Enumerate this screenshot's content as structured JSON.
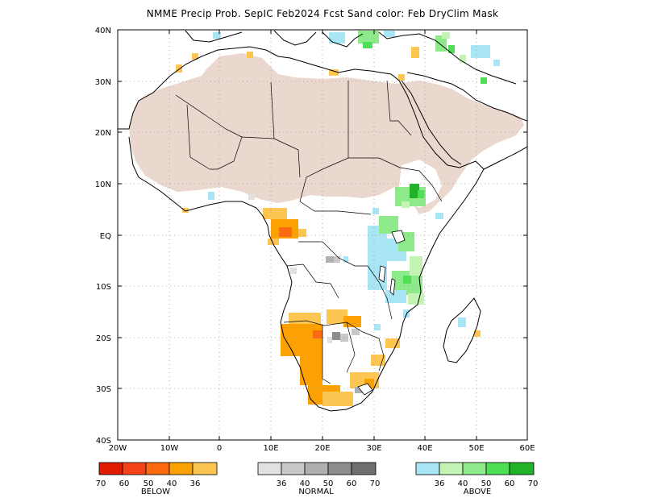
{
  "title": "NMME Precip Prob. SepIC  Feb2024 Fcst  Sand color: Feb DryClim Mask",
  "axes": {
    "lat_labels": [
      "40N",
      "30N",
      "20N",
      "10N",
      "EQ",
      "10S",
      "20S",
      "30S",
      "40S"
    ],
    "lon_labels": [
      "20W",
      "10W",
      "0",
      "10E",
      "20E",
      "30E",
      "40E",
      "50E",
      "60E"
    ]
  },
  "colors": {
    "land_outline": "#000000",
    "dry_mask": "#ead8cf",
    "grid": "#9a9a9a"
  },
  "legend": {
    "below": {
      "label": "BELOW",
      "colors": [
        "#e01c00",
        "#f54218",
        "#fb6a10",
        "#fca102",
        "#fdc653"
      ],
      "tick_labels": [
        "70",
        "60",
        "50",
        "40",
        "36"
      ]
    },
    "normal": {
      "label": "NORMAL",
      "colors": [
        "#e1e1e1",
        "#c8c8c8",
        "#afafaf",
        "#8c8c8c",
        "#6e6e6e"
      ],
      "tick_labels": [
        "36",
        "40",
        "50",
        "60",
        "70"
      ]
    },
    "above": {
      "label": "ABOVE",
      "colors": [
        "#a8e6f5",
        "#c4f4b4",
        "#8ee98a",
        "#4fdf56",
        "#21b22a"
      ],
      "tick_labels": [
        "36",
        "40",
        "50",
        "60",
        "70"
      ]
    }
  }
}
